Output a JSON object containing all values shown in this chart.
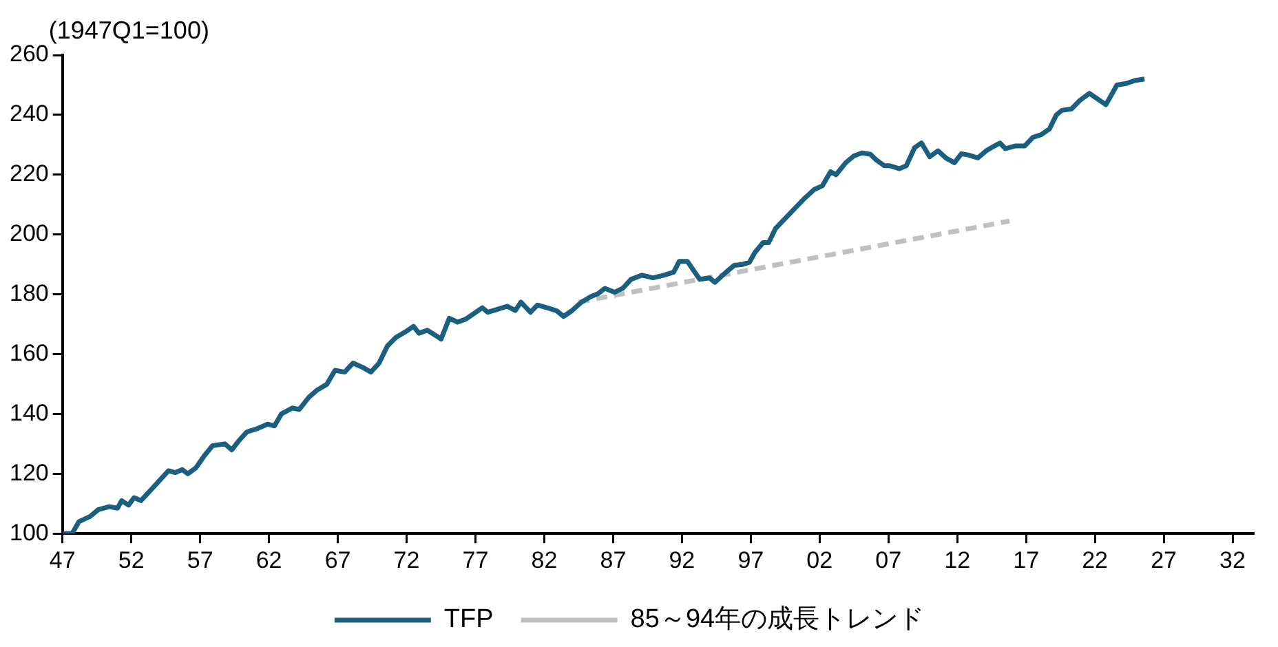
{
  "chart_data": {
    "type": "line",
    "ylabel": "(1947Q1=100)",
    "xlim": [
      1947,
      2033.5
    ],
    "ylim": [
      100,
      260
    ],
    "yticks": [
      100,
      120,
      140,
      160,
      180,
      200,
      220,
      240,
      260
    ],
    "xticks": [
      {
        "value": 1947,
        "label": "47"
      },
      {
        "value": 1952,
        "label": "52"
      },
      {
        "value": 1957,
        "label": "57"
      },
      {
        "value": 1962,
        "label": "62"
      },
      {
        "value": 1967,
        "label": "67"
      },
      {
        "value": 1972,
        "label": "72"
      },
      {
        "value": 1977,
        "label": "77"
      },
      {
        "value": 1982,
        "label": "82"
      },
      {
        "value": 1987,
        "label": "87"
      },
      {
        "value": 1992,
        "label": "92"
      },
      {
        "value": 1997,
        "label": "97"
      },
      {
        "value": 2002,
        "label": "02"
      },
      {
        "value": 2007,
        "label": "07"
      },
      {
        "value": 2012,
        "label": "12"
      },
      {
        "value": 2017,
        "label": "17"
      },
      {
        "value": 2022,
        "label": "22"
      },
      {
        "value": 2027,
        "label": "27"
      },
      {
        "value": 2032,
        "label": "32"
      }
    ],
    "grid": false,
    "legend": "bottom",
    "marker": "none",
    "series": [
      {
        "name": "TFP",
        "color": "#1a5f80",
        "line_style": "solid",
        "x": [
          1947,
          1947.7,
          1948.2,
          1949,
          1949.6,
          1950.4,
          1951,
          1951.3,
          1951.8,
          1952.2,
          1952.7,
          1953.5,
          1954.3,
          1954.7,
          1955.2,
          1955.7,
          1956.1,
          1956.7,
          1957.3,
          1957.9,
          1958.8,
          1959.3,
          1959.8,
          1960.4,
          1961.1,
          1961.9,
          1962.4,
          1962.9,
          1963.7,
          1964.2,
          1964.9,
          1965.5,
          1966.2,
          1966.8,
          1967.5,
          1968.1,
          1968.8,
          1969.4,
          1970,
          1970.6,
          1971.2,
          1971.9,
          1972.5,
          1972.9,
          1973.5,
          1974.2,
          1974.5,
          1975.1,
          1975.7,
          1976.3,
          1976.9,
          1977.5,
          1977.9,
          1978.6,
          1979.3,
          1979.9,
          1980.3,
          1981,
          1981.5,
          1982.2,
          1982.9,
          1983.4,
          1984,
          1984.7,
          1985.4,
          1985.9,
          1986.4,
          1987.1,
          1987.7,
          1988.3,
          1989.1,
          1989.9,
          1990.7,
          1991.4,
          1991.8,
          1992.4,
          1992.8,
          1993.3,
          1994,
          1994.4,
          1995.2,
          1995.8,
          1996.4,
          1996.9,
          1997.3,
          1997.9,
          1998.3,
          1998.8,
          1999.8,
          2000.8,
          2001.6,
          2002.2,
          2002.8,
          2003.2,
          2003.9,
          2004.5,
          2005.1,
          2005.7,
          2006.1,
          2006.7,
          2007.1,
          2007.8,
          2008.3,
          2008.9,
          2009.4,
          2010,
          2010.6,
          2011.2,
          2011.8,
          2012.3,
          2012.8,
          2013.5,
          2014.1,
          2014.7,
          2015.1,
          2015.5,
          2016.2,
          2016.9,
          2017.5,
          2018.1,
          2018.7,
          2019.2,
          2019.6,
          2020.3,
          2020.9,
          2021.6,
          2022.8,
          2023.6,
          2024.3,
          2024.9,
          2025.6
        ],
        "values": [
          100,
          100,
          104,
          105.7,
          108,
          109,
          108.5,
          111,
          109.5,
          112,
          111,
          115,
          119,
          121,
          120.4,
          121.4,
          120,
          122,
          126,
          129.4,
          130,
          128,
          131,
          134,
          135,
          136.6,
          136,
          140,
          142,
          141.5,
          145.6,
          148,
          149.9,
          154.6,
          154,
          157,
          155.6,
          154,
          157,
          162.7,
          165.5,
          167.4,
          169.3,
          167,
          168,
          166,
          165,
          172,
          170.7,
          171.7,
          173.6,
          175.5,
          174,
          175,
          176,
          174.6,
          177.4,
          174,
          176.4,
          175.5,
          174.5,
          172.6,
          174.5,
          177.4,
          179.3,
          180.2,
          182,
          180.7,
          182,
          185,
          186.4,
          185.5,
          186.4,
          187.4,
          191,
          191,
          188.3,
          185,
          185.5,
          184,
          187.4,
          189.7,
          190,
          190.7,
          194,
          197.3,
          197.3,
          202,
          206.8,
          211.6,
          215,
          216.3,
          221,
          220,
          224,
          226.3,
          227.3,
          226.8,
          225,
          223,
          223,
          222,
          223,
          229,
          230.6,
          226,
          228,
          225.5,
          224,
          227,
          226.6,
          225.6,
          228,
          229.6,
          230.6,
          228.7,
          229.6,
          229.6,
          232.5,
          233.4,
          235.3,
          240,
          241.5,
          242,
          244.8,
          247.2,
          243.4,
          250,
          250.5,
          251.5,
          252
        ]
      },
      {
        "name": "85～94年の成長トレンド",
        "color": "#c0c0c0",
        "line_style": "dashed",
        "x": [
          1984.5,
          2015.8
        ],
        "values": [
          177.4,
          204.5
        ]
      }
    ]
  }
}
